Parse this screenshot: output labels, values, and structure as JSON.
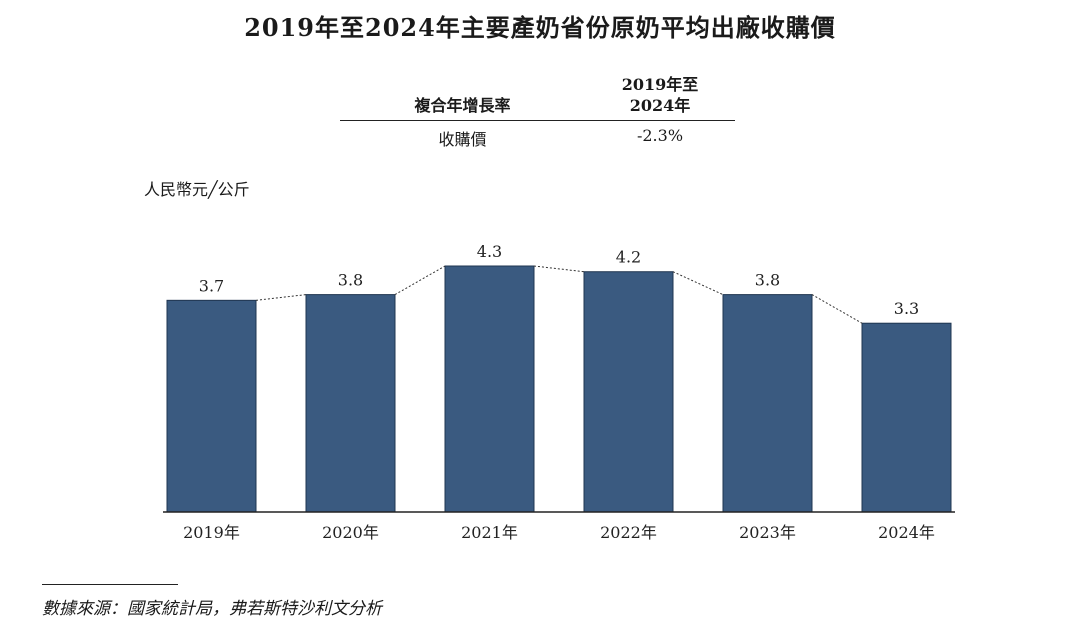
{
  "chart_data": {
    "type": "bar",
    "title": "2019年至2024年主要產奶省份原奶平均出廠收購價",
    "ylabel": "人民幣元╱公斤",
    "categories": [
      "2019年",
      "2020年",
      "2021年",
      "2022年",
      "2023年",
      "2024年"
    ],
    "values": [
      3.7,
      3.8,
      4.3,
      4.2,
      3.8,
      3.3
    ],
    "data_labels": [
      "3.7",
      "3.8",
      "4.3",
      "4.2",
      "3.8",
      "3.3"
    ],
    "ylim": [
      0,
      5.0
    ],
    "grid": false,
    "connector": "dotted",
    "bar_color": "#3a5a80"
  },
  "cagr_table": {
    "header_label": "複合年增長率",
    "period_line1": "2019年至",
    "period_line2": "2024年",
    "row_label": "收購價",
    "row_value": "-2.3%"
  },
  "source": "數據來源：國家統計局，弗若斯特沙利文分析"
}
